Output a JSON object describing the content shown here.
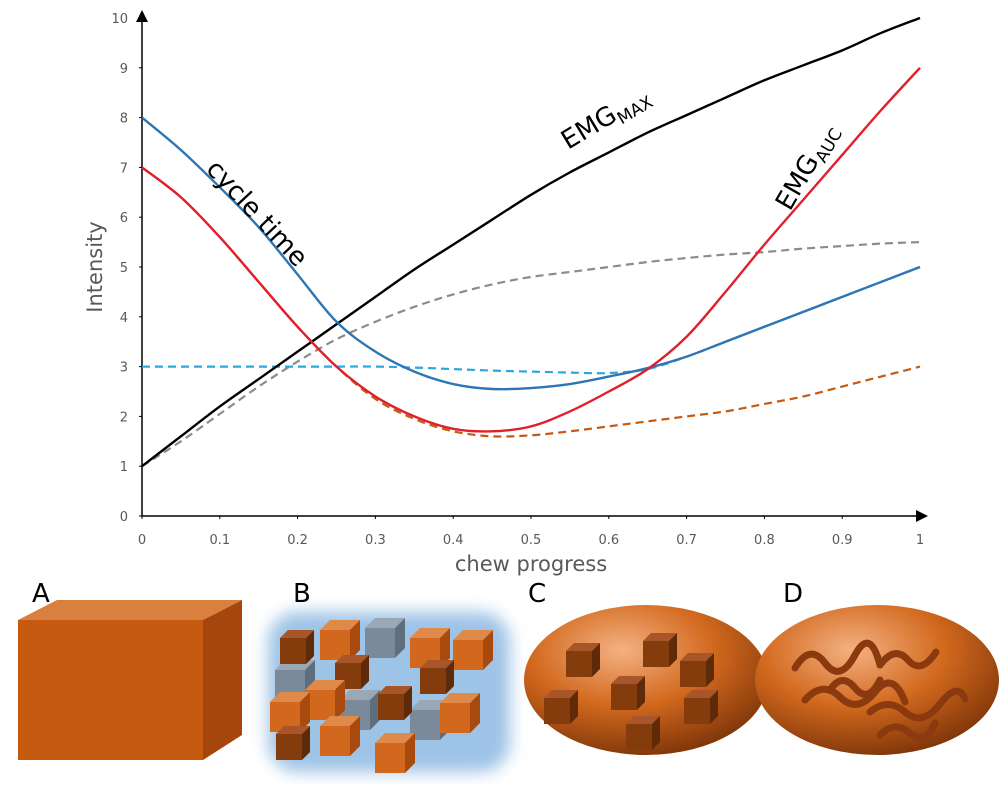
{
  "chart_data": {
    "type": "line",
    "x_label": "chew progress",
    "y_label": "Intensity",
    "x": [
      0,
      0.05,
      0.1,
      0.15,
      0.2,
      0.25,
      0.3,
      0.35,
      0.4,
      0.45,
      0.5,
      0.55,
      0.6,
      0.65,
      0.7,
      0.75,
      0.8,
      0.85,
      0.9,
      0.95,
      1
    ],
    "xlim": [
      0,
      1
    ],
    "xticks": [
      0,
      0.1,
      0.2,
      0.3,
      0.4,
      0.5,
      0.6,
      0.7,
      0.8,
      0.9,
      1
    ],
    "ylim": [
      0,
      10
    ],
    "yticks": [
      0,
      1,
      2,
      3,
      4,
      5,
      6,
      7,
      8,
      9,
      10
    ],
    "grid": false,
    "series": [
      {
        "name": "EMG",
        "subscript": "MAX",
        "color": "#000000",
        "dashed": false,
        "values": [
          1.0,
          1.6,
          2.2,
          2.75,
          3.3,
          3.85,
          4.4,
          4.95,
          5.45,
          5.95,
          6.45,
          6.9,
          7.3,
          7.7,
          8.05,
          8.4,
          8.75,
          9.05,
          9.35,
          9.7,
          10
        ]
      },
      {
        "name": "cycle time",
        "color": "#2e75b6",
        "dashed": false,
        "values": [
          8,
          7.35,
          6.6,
          5.8,
          4.85,
          3.9,
          3.3,
          2.9,
          2.65,
          2.55,
          2.57,
          2.65,
          2.8,
          2.97,
          3.2,
          3.5,
          3.8,
          4.1,
          4.4,
          4.7,
          5
        ]
      },
      {
        "name": "EMG",
        "subscript": "AUC",
        "color": "#e0202a",
        "dashed": false,
        "values": [
          7,
          6.4,
          5.6,
          4.7,
          3.8,
          3.0,
          2.4,
          2.0,
          1.75,
          1.7,
          1.8,
          2.1,
          2.5,
          2.95,
          3.6,
          4.5,
          5.45,
          6.35,
          7.25,
          8.15,
          9
        ]
      },
      {
        "color": "#2aa7df",
        "dashed": true,
        "values": [
          3,
          3,
          3,
          3,
          3,
          3,
          3,
          2.98,
          2.95,
          2.92,
          2.9,
          2.88,
          2.87,
          2.95,
          3.2,
          3.5,
          3.8,
          4.1,
          4.4,
          4.7,
          5
        ]
      },
      {
        "color": "#8c8c8c",
        "dashed": true,
        "values": [
          1,
          1.5,
          2.05,
          2.6,
          3.1,
          3.55,
          3.9,
          4.2,
          4.45,
          4.65,
          4.8,
          4.9,
          5.0,
          5.1,
          5.18,
          5.25,
          5.3,
          5.37,
          5.42,
          5.47,
          5.5
        ]
      },
      {
        "color": "#c55a11",
        "dashed": true,
        "values": [
          7,
          6.4,
          5.6,
          4.7,
          3.8,
          3.0,
          2.35,
          1.95,
          1.7,
          1.6,
          1.62,
          1.7,
          1.8,
          1.9,
          2.0,
          2.1,
          2.25,
          2.4,
          2.6,
          2.8,
          3.0
        ]
      }
    ]
  },
  "panels": [
    {
      "label": "A"
    },
    {
      "label": "B"
    },
    {
      "label": "C"
    },
    {
      "label": "D"
    }
  ]
}
